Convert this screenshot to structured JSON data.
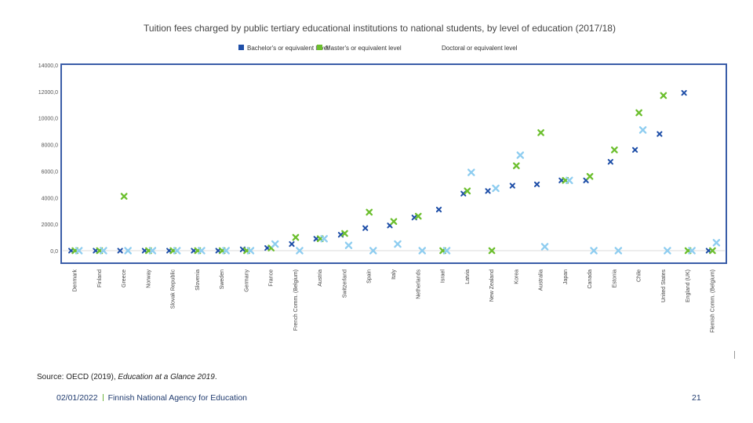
{
  "chart_data": {
    "type": "scatter",
    "title": "Tuition fees charged by public tertiary educational institutions to national students, by level of education (2017/18)",
    "series": [
      {
        "name": "Bachelor's or equivalent level",
        "color": "#1f4fa8",
        "values": [
          0,
          0,
          0,
          0,
          0,
          0,
          0,
          100,
          200,
          500,
          900,
          1200,
          1700,
          1900,
          2500,
          3100,
          4300,
          4500,
          4900,
          5000,
          5300,
          5300,
          6700,
          7600,
          8800,
          11900,
          0
        ]
      },
      {
        "name": "Master's or equivalent level",
        "color": "#6cbf2e",
        "values": [
          0,
          0,
          4100,
          0,
          0,
          0,
          0,
          0,
          200,
          1000,
          900,
          1300,
          2900,
          2200,
          2600,
          0,
          4500,
          0,
          6400,
          8900,
          5300,
          5600,
          7600,
          10400,
          11700,
          0,
          0
        ]
      },
      {
        "name": "Doctoral or equivalent level",
        "color": "#8ecdf0",
        "values": [
          0,
          0,
          0,
          0,
          0,
          0,
          0,
          0,
          500,
          0,
          900,
          400,
          0,
          500,
          0,
          0,
          5900,
          4700,
          7200,
          300,
          5300,
          0,
          0,
          9100,
          0,
          0,
          600
        ]
      }
    ],
    "categories": [
      "Denmark",
      "Finland",
      "Greece",
      "Norway",
      "Slovak Republic",
      "Slovenia",
      "Sweden",
      "Germany",
      "France",
      "French Comm. (Belgium)",
      "Austria",
      "Switzerland",
      "Spain",
      "Italy",
      "Netherlands",
      "Israel",
      "Latvia",
      "New Zealand",
      "Korea",
      "Australia",
      "Japan",
      "Canada",
      "Estonia",
      "Chile",
      "United States",
      "England (UK)",
      "Flemish Comm. (Belgium)"
    ],
    "y_ticks": [
      "0,0",
      "2000,0",
      "4000,0",
      "6000,0",
      "8000,0",
      "10000,0",
      "12000,0",
      "14000,0"
    ],
    "ylim": [
      0,
      14000
    ],
    "grid": false,
    "legend": "top-center"
  },
  "source": {
    "prefix": "Source: OECD (2019), ",
    "italic": "Education at a Glance 2019",
    "suffix": "."
  },
  "footer": {
    "date": "02/01/2022",
    "org": "Finnish National Agency for Education",
    "page": "21"
  }
}
